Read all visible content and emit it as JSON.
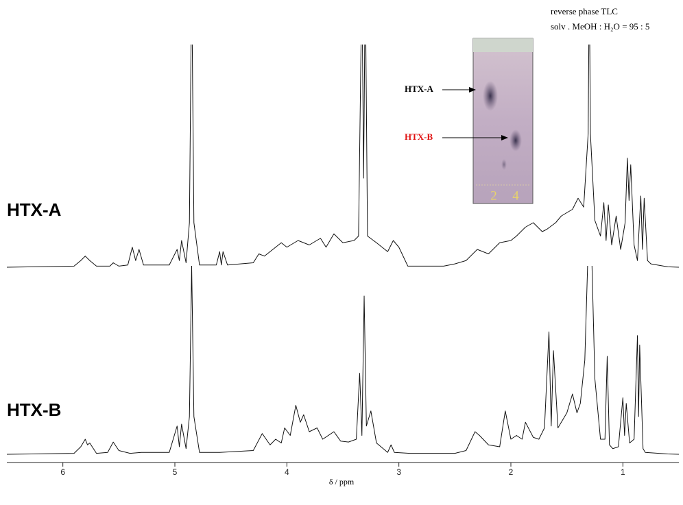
{
  "chart_data": {
    "type": "line",
    "x_label": "δ / ppm",
    "xlim": [
      6.5,
      0.5
    ],
    "xticks": [
      6,
      5,
      4,
      3,
      2,
      1
    ],
    "ylim": [
      0,
      100
    ],
    "series": [
      {
        "name": "HTX-A",
        "color": "#111111",
        "x": [
          6.5,
          5.9,
          5.84,
          5.8,
          5.76,
          5.7,
          5.58,
          5.55,
          5.5,
          5.42,
          5.38,
          5.35,
          5.32,
          5.28,
          5.05,
          4.98,
          4.96,
          4.94,
          4.9,
          4.87,
          4.85,
          4.83,
          4.78,
          4.63,
          4.6,
          4.585,
          4.57,
          4.53,
          4.3,
          4.25,
          4.2,
          4.1,
          4.05,
          4.0,
          3.9,
          3.8,
          3.7,
          3.65,
          3.58,
          3.5,
          3.4,
          3.36,
          3.33,
          3.315,
          3.3,
          3.28,
          3.2,
          3.1,
          3.05,
          3.0,
          2.92,
          2.6,
          2.5,
          2.4,
          2.3,
          2.2,
          2.1,
          2.0,
          1.95,
          1.87,
          1.8,
          1.72,
          1.68,
          1.6,
          1.55,
          1.45,
          1.4,
          1.35,
          1.31,
          1.3,
          1.29,
          1.25,
          1.2,
          1.17,
          1.15,
          1.13,
          1.1,
          1.06,
          1.02,
          0.98,
          0.96,
          0.945,
          0.93,
          0.9,
          0.87,
          0.84,
          0.825,
          0.81,
          0.78,
          0.75,
          0.6,
          0.5
        ],
        "values": [
          0,
          0.5,
          3,
          5,
          3,
          0.5,
          0.5,
          2,
          0.5,
          1,
          9,
          3,
          8,
          1,
          1,
          8,
          3,
          12,
          2,
          20,
          130,
          20,
          1,
          1,
          7,
          1,
          7,
          1,
          2,
          6,
          5,
          9,
          11,
          9,
          12,
          10,
          13,
          9,
          15,
          11,
          12,
          14,
          130,
          40,
          130,
          14,
          11,
          7,
          12,
          9,
          0.5,
          0.5,
          1.5,
          3,
          8,
          6,
          11,
          12,
          14,
          18,
          20,
          16,
          17,
          20,
          23,
          26,
          31,
          27,
          60,
          130,
          60,
          21,
          14,
          29,
          12,
          28,
          10,
          23,
          8,
          20,
          49,
          30,
          46,
          10,
          3,
          32,
          8,
          31,
          3,
          1.5,
          0.2,
          0
        ]
      },
      {
        "name": "HTX-B",
        "color": "#111111",
        "x": [
          6.5,
          5.9,
          5.84,
          5.8,
          5.78,
          5.76,
          5.7,
          5.6,
          5.55,
          5.5,
          5.4,
          5.3,
          5.05,
          4.98,
          4.96,
          4.94,
          4.9,
          4.87,
          4.85,
          4.83,
          4.78,
          4.6,
          4.3,
          4.22,
          4.15,
          4.1,
          4.05,
          4.02,
          3.97,
          3.92,
          3.88,
          3.85,
          3.8,
          3.73,
          3.68,
          3.58,
          3.52,
          3.45,
          3.38,
          3.35,
          3.33,
          3.31,
          3.29,
          3.25,
          3.2,
          3.1,
          3.07,
          3.04,
          2.9,
          2.5,
          2.4,
          2.32,
          2.28,
          2.2,
          2.1,
          2.05,
          2.0,
          1.95,
          1.9,
          1.87,
          1.8,
          1.75,
          1.7,
          1.66,
          1.64,
          1.62,
          1.58,
          1.55,
          1.5,
          1.45,
          1.41,
          1.38,
          1.34,
          1.31,
          1.28,
          1.25,
          1.2,
          1.16,
          1.14,
          1.12,
          1.09,
          1.04,
          1.0,
          0.985,
          0.97,
          0.94,
          0.9,
          0.87,
          0.86,
          0.85,
          0.82,
          0.8,
          0.6,
          0.5
        ],
        "values": [
          0,
          0.5,
          4,
          8,
          5,
          6,
          0.5,
          1,
          6.5,
          2,
          0.5,
          1,
          1,
          15,
          4,
          16,
          3,
          20,
          100,
          20,
          1,
          1,
          2,
          11,
          5,
          8,
          6,
          14,
          10,
          26,
          17,
          21,
          12,
          14,
          8,
          12,
          7,
          6.5,
          8,
          43,
          10,
          84,
          15,
          23,
          6,
          1,
          5,
          1,
          0.5,
          0.5,
          2,
          12,
          10,
          5,
          4,
          23,
          8,
          10,
          8,
          17,
          9,
          8,
          14,
          65,
          15,
          55,
          14,
          17,
          22,
          32,
          22,
          27,
          50,
          110,
          110,
          40,
          8,
          8,
          52,
          5,
          3,
          4,
          30,
          10,
          27,
          6,
          8,
          63,
          20,
          58,
          3,
          1,
          0.2,
          0
        ]
      }
    ],
    "inset": {
      "title": "reverse phase TLC",
      "subtitle": "solv . MeOH : H₂O = 95 : 5",
      "spot_labels": [
        "HTX-A",
        "HTX-B"
      ],
      "lanes": [
        "2",
        "4"
      ]
    }
  }
}
